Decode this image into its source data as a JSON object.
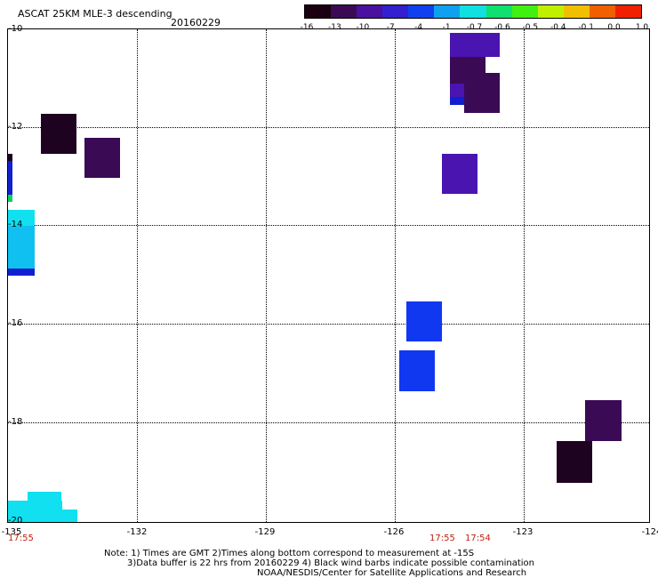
{
  "header": {
    "title": "ASCAT 25KM MLE-3 descending",
    "date": "20160229"
  },
  "colorbar": {
    "labels": [
      "-16",
      "-13",
      "-10",
      "-7",
      "-4",
      "-1",
      "-0.7",
      "-0.6",
      "-0.5",
      "-0.4",
      "-0.1",
      "0.0",
      "1.0"
    ],
    "gradient": [
      "#1a0010",
      "#3c0a55",
      "#4a10a0",
      "#3420d0",
      "#1040f0",
      "#10a0f0",
      "#10e0e0",
      "#10e070",
      "#40f010",
      "#c0f000",
      "#f0c000",
      "#f06000",
      "#f02000"
    ]
  },
  "map": {
    "lon_range": [
      -135,
      -124
    ],
    "lat_range": [
      -20,
      -10
    ],
    "y_labels": [
      "-10",
      "-12",
      "-14",
      "-16",
      "-18",
      "-20"
    ],
    "x_labels": [
      "-135",
      "-132",
      "-129",
      "-126",
      "-123",
      "-124"
    ],
    "times": [
      "17:55",
      "17:55",
      "17:54"
    ],
    "colors": {
      "dark": "#1e0320",
      "darkpurple": "#3a0a55",
      "purple": "#4a14b0",
      "violet": "#5018c8",
      "blue": "#1038f0",
      "cyan": "#10e0f0",
      "skyblue": "#10c0f0",
      "navy": "#1020d0",
      "green": "#10d060"
    }
  },
  "notes": {
    "line1": "Note: 1) Times are GMT 2)Times along bottom correspond to measurement at -15S",
    "line2": "3)Data buffer is 22 hrs from 20160229 4) Black wind barbs indicate possible contamination",
    "line3": "NOAA/NESDIS/Center for Satellite Applications and Research"
  }
}
